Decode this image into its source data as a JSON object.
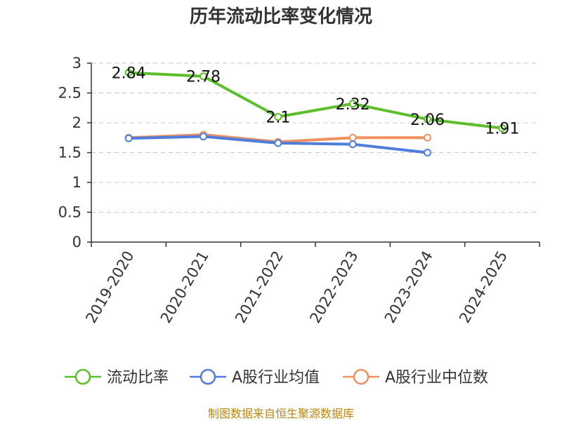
{
  "chart_data": {
    "type": "line",
    "title": "历年流动比率变化情况",
    "categories": [
      "2019-2020",
      "2020-2021",
      "2021-2022",
      "2022-2023",
      "2023-2024",
      "2024-2025"
    ],
    "ylim": [
      0,
      3
    ],
    "yticks": [
      "0",
      "0.5",
      "1",
      "1.5",
      "2",
      "2.5",
      "3"
    ],
    "grid": true,
    "legend_position": "bottom",
    "series": [
      {
        "name": "流动比率",
        "color": "#5cbf2a",
        "values": [
          2.84,
          2.78,
          2.1,
          2.32,
          2.06,
          1.91
        ],
        "labels": [
          "2.84",
          "2.78",
          "2.1",
          "2.32",
          "2.06",
          "1.91"
        ]
      },
      {
        "name": "A股行业均值",
        "color": "#4f7ddb",
        "values": [
          1.74,
          1.77,
          1.66,
          1.64,
          1.5,
          null
        ]
      },
      {
        "name": "A股行业中位数",
        "color": "#f0915f",
        "values": [
          1.75,
          1.8,
          1.68,
          1.75,
          1.75,
          null
        ]
      }
    ],
    "source": "制图数据来自恒生聚源数据库"
  }
}
